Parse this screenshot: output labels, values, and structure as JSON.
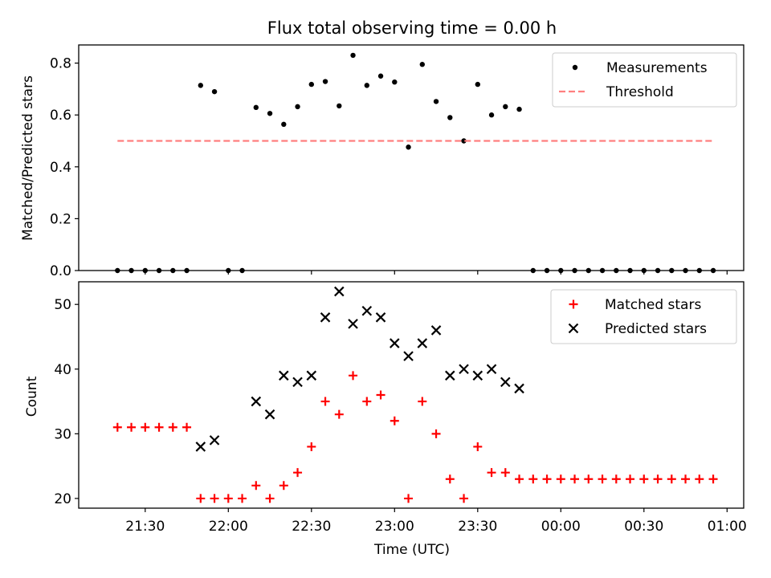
{
  "chart_data": [
    {
      "type": "scatter",
      "title": "Flux total observing time = 0.00 h",
      "xlabel": "",
      "ylabel": "Matched/Predicted stars",
      "ylim": [
        0,
        0.87
      ],
      "yticks": [
        0.0,
        0.2,
        0.4,
        0.6,
        0.8
      ],
      "ytick_labels": [
        "0.0",
        "0.2",
        "0.4",
        "0.6",
        "0.8"
      ],
      "legend_position": "top-right",
      "series": [
        {
          "name": "Measurements",
          "marker": "dot",
          "color": "#000000",
          "points": [
            [
              "21:20",
              0.0
            ],
            [
              "21:25",
              0.0
            ],
            [
              "21:30",
              0.0
            ],
            [
              "21:35",
              0.0
            ],
            [
              "21:40",
              0.0
            ],
            [
              "21:45",
              0.0
            ],
            [
              "21:50",
              0.714
            ],
            [
              "21:55",
              0.69
            ],
            [
              "22:00",
              0.0
            ],
            [
              "22:05",
              0.0
            ],
            [
              "22:10",
              0.629
            ],
            [
              "22:15",
              0.606
            ],
            [
              "22:20",
              0.564
            ],
            [
              "22:25",
              0.632
            ],
            [
              "22:30",
              0.718
            ],
            [
              "22:35",
              0.729
            ],
            [
              "22:40",
              0.635
            ],
            [
              "22:45",
              0.83
            ],
            [
              "22:50",
              0.714
            ],
            [
              "22:55",
              0.75
            ],
            [
              "23:00",
              0.727
            ],
            [
              "23:05",
              0.476
            ],
            [
              "23:10",
              0.795
            ],
            [
              "23:15",
              0.652
            ],
            [
              "23:20",
              0.59
            ],
            [
              "23:25",
              0.5
            ],
            [
              "23:30",
              0.718
            ],
            [
              "23:35",
              0.6
            ],
            [
              "23:40",
              0.632
            ],
            [
              "23:45",
              0.622
            ],
            [
              "23:50",
              0.0
            ],
            [
              "23:55",
              0.0
            ],
            [
              "00:00",
              0.0
            ],
            [
              "00:05",
              0.0
            ],
            [
              "00:10",
              0.0
            ],
            [
              "00:15",
              0.0
            ],
            [
              "00:20",
              0.0
            ],
            [
              "00:25",
              0.0
            ],
            [
              "00:30",
              0.0
            ],
            [
              "00:35",
              0.0
            ],
            [
              "00:40",
              0.0
            ],
            [
              "00:45",
              0.0
            ],
            [
              "00:50",
              0.0
            ],
            [
              "00:55",
              0.0
            ]
          ]
        },
        {
          "name": "Threshold",
          "marker": "dashed-line",
          "color": "#ff7f7f",
          "points": [
            [
              "21:20",
              0.5
            ],
            [
              "00:55",
              0.5
            ]
          ]
        }
      ]
    },
    {
      "type": "scatter",
      "title": "",
      "xlabel": "Time (UTC)",
      "ylabel": "Count",
      "ylim": [
        18.5,
        53.5
      ],
      "yticks": [
        20,
        30,
        40,
        50
      ],
      "ytick_labels": [
        "20",
        "30",
        "40",
        "50"
      ],
      "xticks": [
        "21:30",
        "22:00",
        "22:30",
        "23:00",
        "23:30",
        "00:00",
        "00:30",
        "01:00"
      ],
      "legend_position": "top-right",
      "series": [
        {
          "name": "Matched stars",
          "marker": "plus",
          "color": "#ff0000",
          "points": [
            [
              "21:20",
              31
            ],
            [
              "21:25",
              31
            ],
            [
              "21:30",
              31
            ],
            [
              "21:35",
              31
            ],
            [
              "21:40",
              31
            ],
            [
              "21:45",
              31
            ],
            [
              "21:50",
              20
            ],
            [
              "21:55",
              20
            ],
            [
              "22:00",
              20
            ],
            [
              "22:05",
              20
            ],
            [
              "22:10",
              22
            ],
            [
              "22:15",
              20
            ],
            [
              "22:20",
              22
            ],
            [
              "22:25",
              24
            ],
            [
              "22:30",
              28
            ],
            [
              "22:35",
              35
            ],
            [
              "22:40",
              33
            ],
            [
              "22:45",
              39
            ],
            [
              "22:50",
              35
            ],
            [
              "22:55",
              36
            ],
            [
              "23:00",
              32
            ],
            [
              "23:05",
              20
            ],
            [
              "23:10",
              35
            ],
            [
              "23:15",
              30
            ],
            [
              "23:20",
              23
            ],
            [
              "23:25",
              20
            ],
            [
              "23:30",
              28
            ],
            [
              "23:35",
              24
            ],
            [
              "23:40",
              24
            ],
            [
              "23:45",
              23
            ],
            [
              "23:50",
              23
            ],
            [
              "23:55",
              23
            ],
            [
              "00:00",
              23
            ],
            [
              "00:05",
              23
            ],
            [
              "00:10",
              23
            ],
            [
              "00:15",
              23
            ],
            [
              "00:20",
              23
            ],
            [
              "00:25",
              23
            ],
            [
              "00:30",
              23
            ],
            [
              "00:35",
              23
            ],
            [
              "00:40",
              23
            ],
            [
              "00:45",
              23
            ],
            [
              "00:50",
              23
            ],
            [
              "00:55",
              23
            ]
          ]
        },
        {
          "name": "Predicted stars",
          "marker": "x",
          "color": "#000000",
          "points": [
            [
              "21:50",
              28
            ],
            [
              "21:55",
              29
            ],
            [
              "22:10",
              35
            ],
            [
              "22:15",
              33
            ],
            [
              "22:20",
              39
            ],
            [
              "22:25",
              38
            ],
            [
              "22:30",
              39
            ],
            [
              "22:35",
              48
            ],
            [
              "22:40",
              52
            ],
            [
              "22:45",
              47
            ],
            [
              "22:50",
              49
            ],
            [
              "22:55",
              48
            ],
            [
              "23:00",
              44
            ],
            [
              "23:05",
              42
            ],
            [
              "23:10",
              44
            ],
            [
              "23:15",
              46
            ],
            [
              "23:20",
              39
            ],
            [
              "23:25",
              40
            ],
            [
              "23:30",
              39
            ],
            [
              "23:35",
              40
            ],
            [
              "23:40",
              38
            ],
            [
              "23:45",
              37
            ]
          ]
        }
      ]
    }
  ]
}
